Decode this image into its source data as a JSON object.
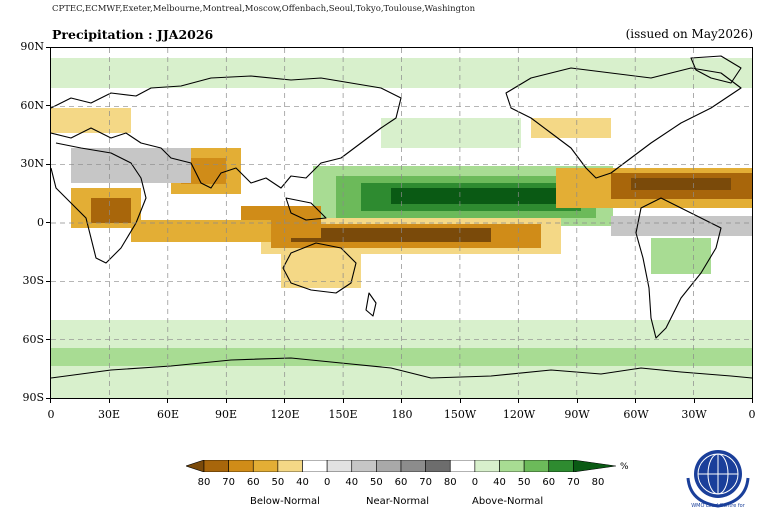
{
  "header": {
    "source": "CPTEC,ECMWF,Exeter,Melbourne,Montreal,Moscow,Offenbach,Seoul,Tokyo,Toulouse,Washington",
    "title": "Precipitation : JJA2026",
    "issued": "(issued on May2026)"
  },
  "map": {
    "lat_ticks": [
      "90N",
      "60N",
      "30N",
      "0",
      "30S",
      "60S",
      "90S"
    ],
    "lon_ticks": [
      "0",
      "30E",
      "60E",
      "90E",
      "120E",
      "150E",
      "180",
      "150W",
      "120W",
      "90W",
      "60W",
      "30W",
      "0"
    ],
    "grid": true,
    "projection": "equirectangular, 0E to 360E"
  },
  "legend": {
    "unit": "%",
    "numbers": [
      "80",
      "70",
      "60",
      "50",
      "40",
      "0",
      "40",
      "50",
      "60",
      "70",
      "80",
      "0",
      "40",
      "50",
      "60",
      "70",
      "80"
    ],
    "categories": [
      "Below-Normal",
      "Near-Normal",
      "Above-Normal"
    ],
    "colors": [
      "#7a4a0a",
      "#a8660b",
      "#d08c18",
      "#e3ae35",
      "#f4d886",
      "#ffffff",
      "#e2e2e2",
      "#c6c6c6",
      "#a9a9a9",
      "#8c8c8c",
      "#6d6d6d",
      "#ffffff",
      "#d8f0cc",
      "#a8dc93",
      "#6cba5a",
      "#2e8b30",
      "#0a5a14"
    ]
  },
  "logo": {
    "text": "WMO Lead Centre for"
  }
}
